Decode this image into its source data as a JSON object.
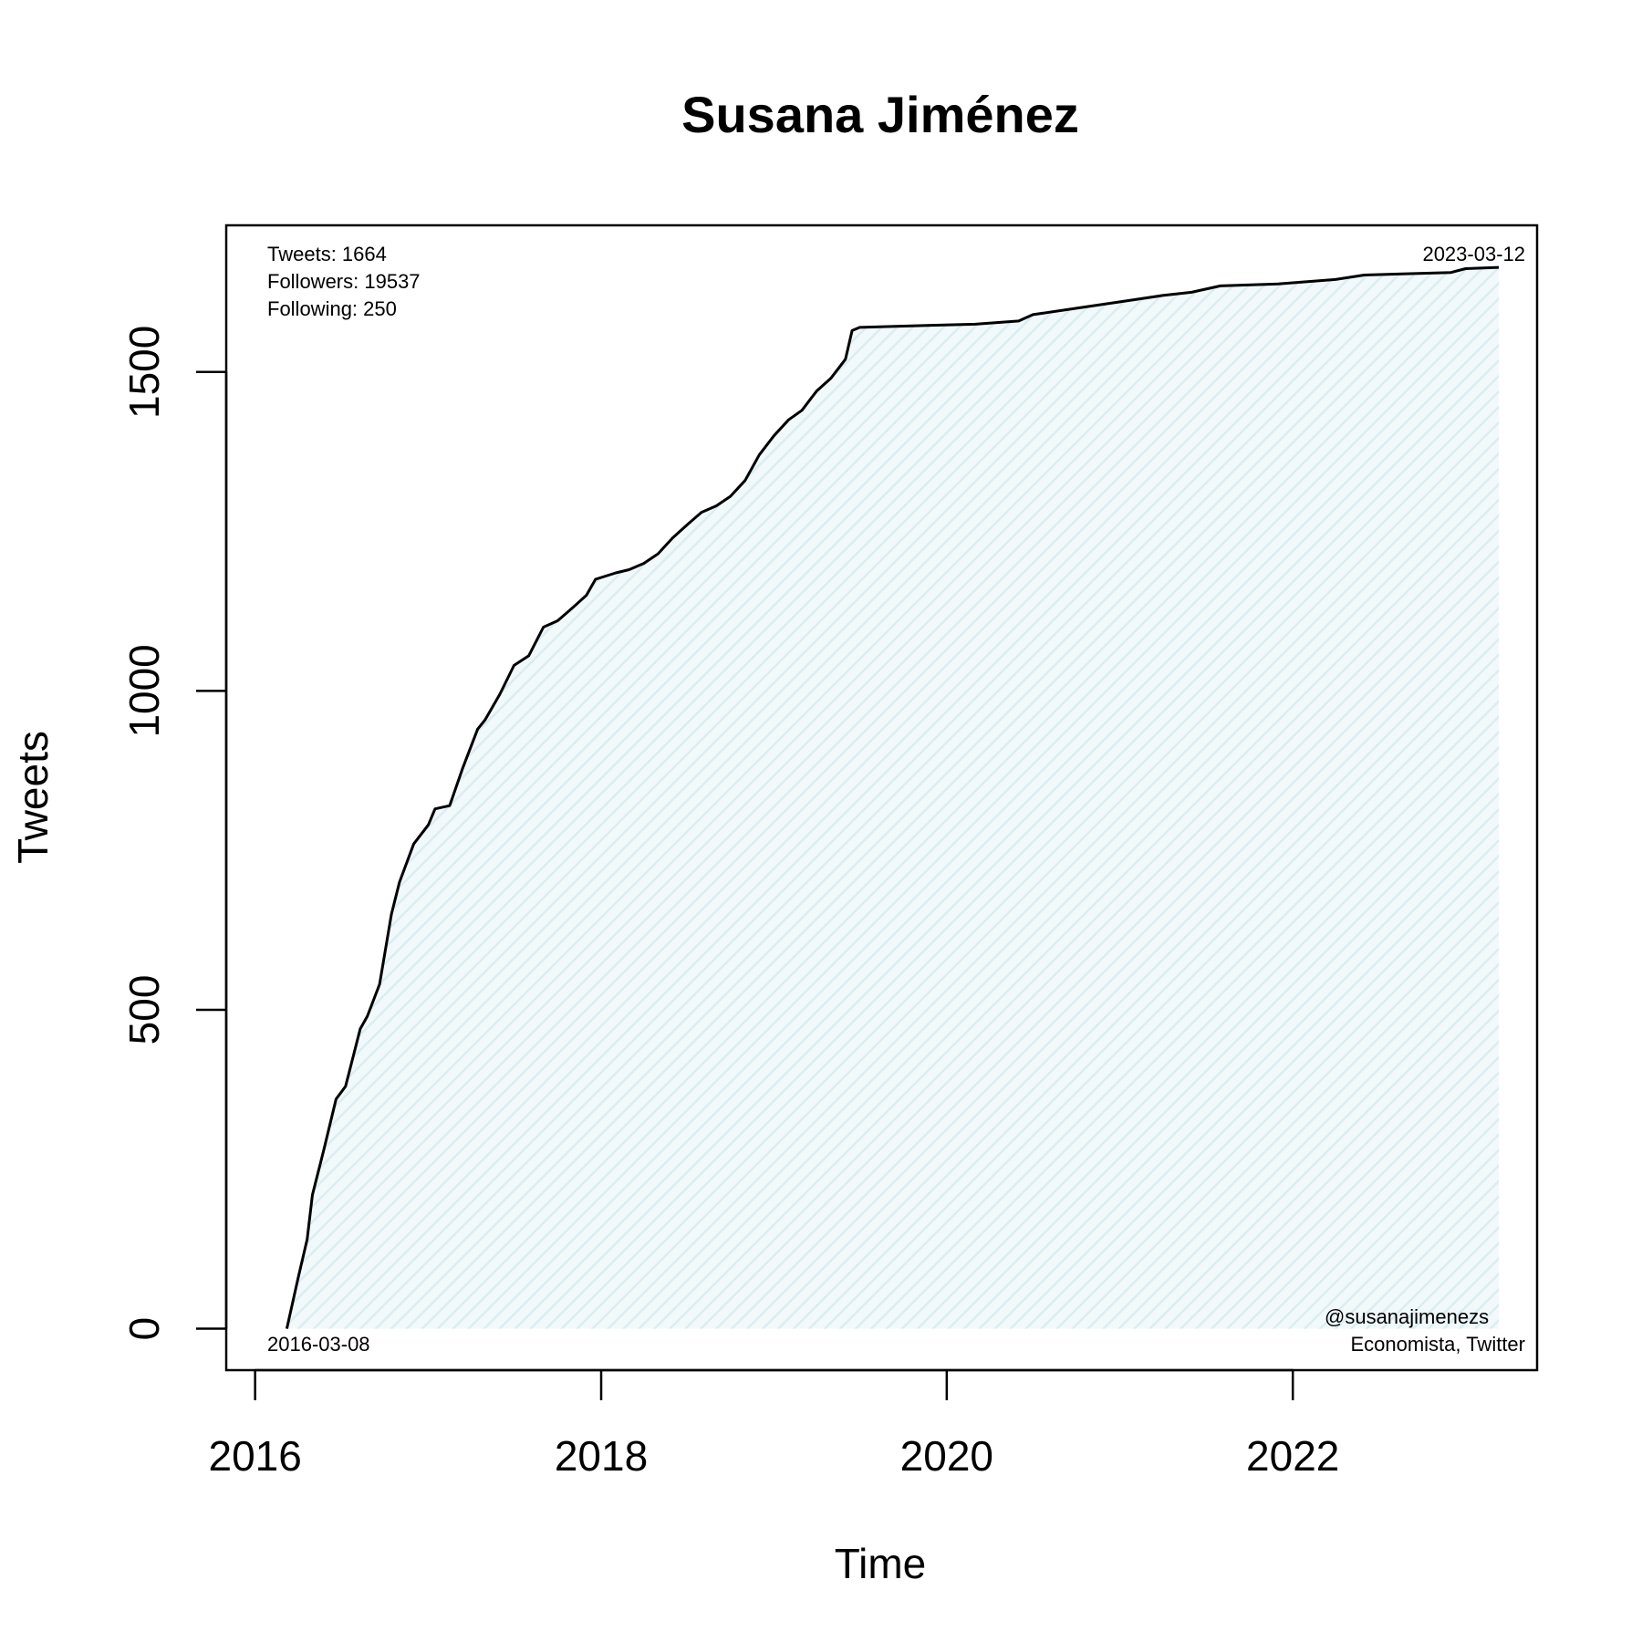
{
  "chart_data": {
    "type": "area",
    "title": "Susana Jiménez",
    "xlabel": "Time",
    "ylabel": "Tweets",
    "xlim": [
      "2015-11-01",
      "2023-06-01"
    ],
    "ylim": [
      -65,
      1730
    ],
    "x_ticks": [
      {
        "date": "2016-01-01",
        "label": "2016"
      },
      {
        "date": "2018-01-01",
        "label": "2018"
      },
      {
        "date": "2020-01-01",
        "label": "2020"
      },
      {
        "date": "2022-01-01",
        "label": "2022"
      }
    ],
    "y_ticks": [
      {
        "value": 0,
        "label": "0"
      },
      {
        "value": 500,
        "label": "500"
      },
      {
        "value": 1000,
        "label": "1000"
      },
      {
        "value": 1500,
        "label": "1500"
      }
    ],
    "grid": false,
    "fill_color": "#e3f1f4",
    "line_color": "#000000",
    "stats": {
      "tweets": "Tweets: 1664",
      "followers": "Followers: 19537",
      "following": "Following: 250"
    },
    "start_date_label": "2016-03-08",
    "end_date_label": "2023-03-12",
    "handle": "@susanajimenezs",
    "description": "Economista, Twitter",
    "series": [
      {
        "points": [
          [
            "2016-03-08",
            0
          ],
          [
            "2016-04-01",
            80
          ],
          [
            "2016-04-20",
            140
          ],
          [
            "2016-05-01",
            210
          ],
          [
            "2016-05-25",
            280
          ],
          [
            "2016-06-20",
            360
          ],
          [
            "2016-07-10",
            380
          ],
          [
            "2016-08-10",
            470
          ],
          [
            "2016-08-25",
            490
          ],
          [
            "2016-09-20",
            540
          ],
          [
            "2016-10-15",
            650
          ],
          [
            "2016-11-01",
            700
          ],
          [
            "2016-12-01",
            760
          ],
          [
            "2017-01-01",
            790
          ],
          [
            "2017-01-15",
            815
          ],
          [
            "2017-02-15",
            820
          ],
          [
            "2017-03-15",
            880
          ],
          [
            "2017-04-15",
            940
          ],
          [
            "2017-05-01",
            955
          ],
          [
            "2017-06-01",
            995
          ],
          [
            "2017-07-01",
            1040
          ],
          [
            "2017-08-01",
            1055
          ],
          [
            "2017-09-01",
            1100
          ],
          [
            "2017-10-01",
            1110
          ],
          [
            "2017-11-01",
            1130
          ],
          [
            "2017-12-01",
            1150
          ],
          [
            "2017-12-20",
            1175
          ],
          [
            "2018-02-01",
            1185
          ],
          [
            "2018-03-01",
            1190
          ],
          [
            "2018-04-01",
            1200
          ],
          [
            "2018-05-01",
            1215
          ],
          [
            "2018-06-01",
            1240
          ],
          [
            "2018-07-01",
            1260
          ],
          [
            "2018-08-01",
            1280
          ],
          [
            "2018-09-01",
            1290
          ],
          [
            "2018-10-01",
            1305
          ],
          [
            "2018-11-01",
            1330
          ],
          [
            "2018-12-01",
            1370
          ],
          [
            "2019-01-01",
            1400
          ],
          [
            "2019-02-01",
            1425
          ],
          [
            "2019-03-01",
            1440
          ],
          [
            "2019-04-01",
            1470
          ],
          [
            "2019-05-01",
            1490
          ],
          [
            "2019-06-01",
            1520
          ],
          [
            "2019-06-15",
            1565
          ],
          [
            "2019-07-01",
            1570
          ],
          [
            "2019-10-01",
            1572
          ],
          [
            "2020-03-01",
            1575
          ],
          [
            "2020-06-01",
            1580
          ],
          [
            "2020-07-01",
            1590
          ],
          [
            "2020-10-01",
            1600
          ],
          [
            "2021-01-01",
            1610
          ],
          [
            "2021-04-01",
            1620
          ],
          [
            "2021-06-01",
            1625
          ],
          [
            "2021-08-01",
            1635
          ],
          [
            "2021-12-01",
            1638
          ],
          [
            "2022-04-01",
            1645
          ],
          [
            "2022-06-01",
            1652
          ],
          [
            "2022-12-01",
            1656
          ],
          [
            "2023-01-01",
            1662
          ],
          [
            "2023-03-12",
            1664
          ]
        ]
      }
    ]
  }
}
